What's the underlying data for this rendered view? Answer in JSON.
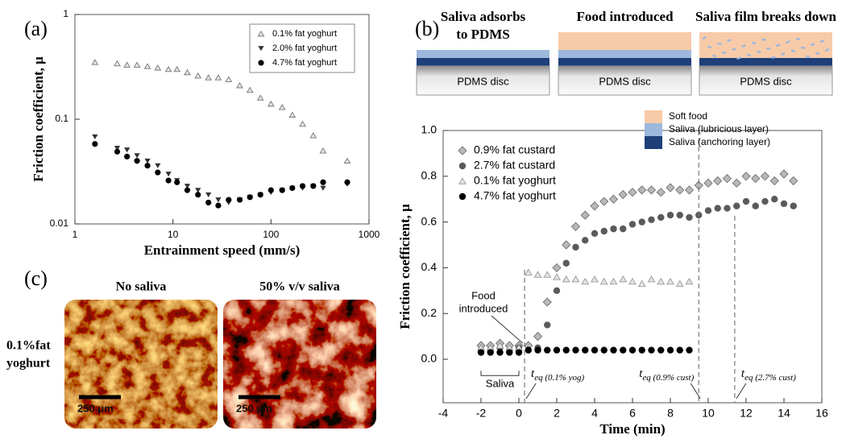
{
  "panel_labels": [
    "(a)",
    "(b)",
    "(c)"
  ],
  "chart_data": [
    {
      "type": "scatter",
      "xlabel": "Entrainment speed (mm/s)",
      "ylabel": "Friction coefficient, μ",
      "xscale": "log",
      "yscale": "log",
      "xlim": [
        1,
        1000
      ],
      "ylim": [
        0.01,
        1
      ],
      "xticks": [
        1,
        10,
        100,
        1000
      ],
      "yticks": [
        0.01,
        0.1,
        1
      ],
      "legend": "upper right",
      "x": [
        1.6,
        2.7,
        3.4,
        4.3,
        5.5,
        7,
        9,
        11,
        14,
        18,
        23,
        29,
        37,
        48,
        61,
        78,
        100,
        130,
        165,
        210,
        270,
        340,
        600
      ],
      "series": [
        {
          "name": "0.1% fat yoghurt",
          "color": "#777777",
          "marker": "triangle-open",
          "values": [
            0.35,
            0.34,
            0.33,
            0.33,
            0.32,
            0.31,
            0.3,
            0.3,
            0.28,
            0.26,
            0.25,
            0.25,
            0.24,
            0.21,
            0.19,
            0.16,
            0.14,
            0.13,
            0.11,
            0.09,
            0.07,
            0.05,
            0.04
          ]
        },
        {
          "name": "2.0% fat yoghurt",
          "color": "#333333",
          "marker": "triangle-down",
          "values": [
            0.068,
            0.053,
            0.051,
            0.045,
            0.04,
            0.036,
            0.03,
            0.026,
            0.023,
            0.021,
            0.019,
            0.017,
            0.016,
            0.017,
            0.018,
            0.019,
            0.02,
            0.021,
            0.022,
            0.022,
            0.023,
            0.022,
            0.024
          ]
        },
        {
          "name": "4.7% fat yoghurt",
          "color": "#000000",
          "marker": "circle",
          "values": [
            0.058,
            0.049,
            0.044,
            0.04,
            0.036,
            0.031,
            0.026,
            0.025,
            0.021,
            0.019,
            0.016,
            0.015,
            0.017,
            0.017,
            0.018,
            0.019,
            0.021,
            0.021,
            0.022,
            0.023,
            0.023,
            0.025,
            0.025
          ]
        }
      ]
    },
    {
      "type": "scatter",
      "xlabel": "Time (min)",
      "ylabel": "Friction coefficient, μ",
      "xlim": [
        -4,
        16
      ],
      "ylim": [
        -0.19,
        1.0
      ],
      "xticks": [
        -4,
        -2,
        0,
        2,
        4,
        6,
        8,
        10,
        12,
        14,
        16
      ],
      "yticks": [
        {
          "value": 0,
          "label": "0.0"
        },
        {
          "value": 0.2,
          "label": "0.2"
        },
        {
          "value": 0.4,
          "label": "0.4"
        },
        {
          "value": 0.6,
          "label": "0.6"
        },
        {
          "value": 0.8,
          "label": "0.8"
        },
        {
          "value": 1.0,
          "label": "1.0"
        }
      ],
      "legend": "upper left",
      "x": [
        -2,
        -1.5,
        -1,
        -0.5,
        0,
        0.5,
        1,
        1.5,
        2,
        2.5,
        3,
        3.5,
        4,
        4.5,
        5,
        5.5,
        6,
        6.5,
        7,
        7.5,
        8,
        8.5,
        9,
        9.5,
        10,
        10.5,
        11,
        11.5,
        12,
        12.5,
        13,
        13.5,
        14,
        14.5
      ],
      "series": [
        {
          "name": "0.9% fat custard",
          "color": "#b8b8b8",
          "marker": "diamond",
          "values": [
            0.06,
            0.06,
            0.07,
            0.06,
            0.06,
            0.06,
            0.1,
            0.25,
            0.4,
            0.5,
            0.58,
            0.63,
            0.67,
            0.69,
            0.7,
            0.72,
            0.73,
            0.74,
            0.74,
            0.73,
            0.75,
            0.74,
            0.74,
            0.76,
            0.77,
            0.78,
            0.79,
            0.77,
            0.8,
            0.79,
            0.8,
            0.78,
            0.81,
            0.78
          ]
        },
        {
          "name": "2.7% fat custard",
          "color": "#5a5a5a",
          "marker": "circle",
          "values": [
            0.04,
            0.04,
            0.05,
            0.04,
            0.05,
            0.04,
            0.05,
            0.15,
            0.3,
            0.42,
            0.49,
            0.52,
            0.55,
            0.56,
            0.57,
            0.57,
            0.59,
            0.6,
            0.61,
            0.62,
            0.63,
            0.63,
            0.62,
            0.63,
            0.65,
            0.66,
            0.66,
            0.67,
            0.69,
            0.67,
            0.69,
            0.7,
            0.68,
            0.67
          ]
        },
        {
          "name": "0.1% fat yoghurt",
          "color": "#999999",
          "marker": "triangle-open",
          "values": [
            0.05,
            0.05,
            0.06,
            0.05,
            0.05,
            0.38,
            0.37,
            0.37,
            0.36,
            0.35,
            0.35,
            0.34,
            0.35,
            0.34,
            0.34,
            0.35,
            0.34,
            0.33,
            0.35,
            0.34,
            0.34,
            0.33,
            0.34,
            null,
            null,
            null,
            null,
            null,
            null,
            null,
            null,
            null,
            null,
            null
          ]
        },
        {
          "name": "4.7% fat yoghurt",
          "color": "#000000",
          "marker": "circle",
          "values": [
            0.03,
            0.03,
            0.03,
            0.03,
            0.03,
            0.04,
            0.04,
            0.04,
            0.04,
            0.04,
            0.04,
            0.04,
            0.04,
            0.04,
            0.04,
            0.04,
            0.04,
            0.04,
            0.04,
            0.04,
            0.04,
            0.04,
            0.04,
            null,
            null,
            null,
            null,
            null,
            null,
            null,
            null,
            null,
            null,
            null
          ]
        }
      ],
      "annotations": {
        "food": [
          "Food",
          "introduced"
        ],
        "baseline": "Saliva"
      },
      "eq_lines": [
        {
          "x": 0.3,
          "symbol": "t",
          "sub": "eq (0.1% yog)"
        },
        {
          "x": 9.5,
          "symbol": "t",
          "sub": "eq (0.9% cust)"
        },
        {
          "x": 11.4,
          "symbol": "t",
          "sub": "eq (2.7% cust)"
        }
      ]
    }
  ],
  "schematic": {
    "steps": [
      {
        "title": [
          "Saliva adsorbs",
          "to PDMS"
        ],
        "disc": "PDMS disc"
      },
      {
        "title": [
          "Food introduced"
        ],
        "disc": "PDMS disc"
      },
      {
        "title": [
          "Saliva film breaks down"
        ],
        "disc": "PDMS disc"
      }
    ],
    "legend": [
      {
        "name": "Soft food",
        "color": "#f8cba8"
      },
      {
        "name": "Saliva (lubricious layer)",
        "color": "#9db8dc"
      },
      {
        "name": "Saliva (anchoring layer)",
        "color": "#1e3f78"
      }
    ]
  },
  "micrographs": {
    "columns": [
      "No saliva",
      "50% v/v saliva"
    ],
    "row": [
      "0.1%fat",
      "yoghurt"
    ],
    "scale_bars": [
      "250 μm",
      "250 μm"
    ]
  }
}
